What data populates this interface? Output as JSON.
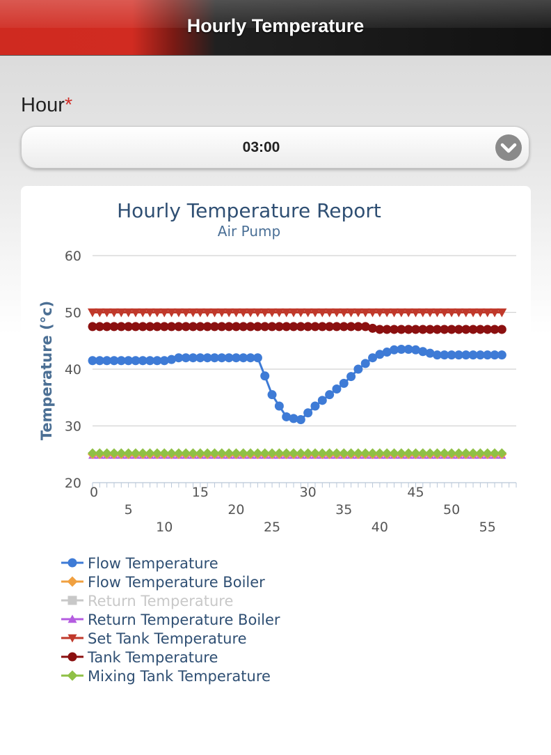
{
  "header": {
    "title": "Hourly Temperature"
  },
  "form": {
    "hour_label": "Hour",
    "required_mark": "*",
    "hour_value": "03:00"
  },
  "colors": {
    "header_red": "#cf2a20",
    "flow": "#3e7bd6",
    "flow_boiler": "#f0a040",
    "return": "#c8c8c8",
    "return_boiler": "#b45ce0",
    "set_tank": "#c0392b",
    "tank": "#8b1010",
    "mixing": "#8fc045"
  },
  "chart_data": {
    "type": "line",
    "title": "Hourly Temperature Report",
    "subtitle": "Air Pump",
    "ylabel": "Temperature (°c)",
    "xlabel": "",
    "ylim": [
      20,
      60
    ],
    "yticks": [
      20,
      30,
      40,
      50,
      60
    ],
    "xlim": [
      0,
      59
    ],
    "xtick_labels": [
      0,
      5,
      10,
      15,
      20,
      25,
      30,
      35,
      40,
      45,
      50,
      55
    ],
    "grid": true,
    "legend_position": "bottom",
    "series": [
      {
        "name": "Flow Temperature",
        "marker": "circle",
        "values": [
          41.5,
          41.5,
          41.5,
          41.5,
          41.5,
          41.5,
          41.5,
          41.5,
          41.5,
          41.5,
          41.5,
          41.7,
          42.0,
          42.0,
          42.0,
          42.0,
          42.0,
          42.0,
          42.0,
          42.0,
          42.0,
          42.0,
          42.0,
          42.0,
          38.8,
          35.5,
          33.5,
          31.6,
          31.3,
          31.1,
          32.3,
          33.5,
          34.5,
          35.5,
          36.5,
          37.5,
          38.7,
          40.0,
          41.0,
          42.0,
          42.6,
          43.0,
          43.4,
          43.5,
          43.5,
          43.4,
          43.1,
          42.8,
          42.5,
          42.5,
          42.5,
          42.5,
          42.5,
          42.5,
          42.5,
          42.5,
          42.5,
          42.5
        ]
      },
      {
        "name": "Flow Temperature Boiler",
        "marker": "diamond",
        "values": [
          25.0,
          25.0,
          25.0,
          25.0,
          25.0,
          25.0,
          25.0,
          25.0,
          25.0,
          25.0,
          25.0,
          25.0,
          25.0,
          25.0,
          25.0,
          25.0,
          25.0,
          25.0,
          25.0,
          25.0,
          25.0,
          25.0,
          25.0,
          25.0,
          25.0,
          25.0,
          25.0,
          25.0,
          25.0,
          25.0,
          25.0,
          25.0,
          25.0,
          25.0,
          25.0,
          25.0,
          25.0,
          25.0,
          25.0,
          25.0,
          25.0,
          25.0,
          25.0,
          25.0,
          25.0,
          25.0,
          25.0,
          25.0,
          25.0,
          25.0,
          25.0,
          25.0,
          25.0,
          25.0,
          25.0,
          25.0,
          25.0,
          25.0
        ]
      },
      {
        "name": "Return Temperature",
        "marker": "square",
        "hidden": true,
        "values": []
      },
      {
        "name": "Return Temperature Boiler",
        "marker": "triangle",
        "values": [
          24.8,
          24.8,
          24.8,
          24.8,
          24.8,
          24.8,
          24.8,
          24.8,
          24.8,
          24.8,
          24.8,
          24.8,
          24.8,
          24.8,
          24.8,
          24.8,
          24.8,
          24.8,
          24.8,
          24.8,
          24.8,
          24.8,
          24.8,
          24.8,
          24.8,
          24.8,
          24.8,
          24.8,
          24.8,
          24.8,
          24.8,
          24.8,
          24.8,
          24.8,
          24.8,
          24.8,
          24.8,
          24.8,
          24.8,
          24.8,
          24.8,
          24.8,
          24.8,
          24.8,
          24.8,
          24.8,
          24.8,
          24.8,
          24.8,
          24.8,
          24.8,
          24.8,
          24.8,
          24.8,
          24.8,
          24.8,
          24.8,
          24.8
        ]
      },
      {
        "name": "Set Tank Temperature",
        "marker": "triangle-down",
        "values": [
          50.0,
          50.0,
          50.0,
          50.0,
          50.0,
          50.0,
          50.0,
          50.0,
          50.0,
          50.0,
          50.0,
          50.0,
          50.0,
          50.0,
          50.0,
          50.0,
          50.0,
          50.0,
          50.0,
          50.0,
          50.0,
          50.0,
          50.0,
          50.0,
          50.0,
          50.0,
          50.0,
          50.0,
          50.0,
          50.0,
          50.0,
          50.0,
          50.0,
          50.0,
          50.0,
          50.0,
          50.0,
          50.0,
          50.0,
          50.0,
          50.0,
          50.0,
          50.0,
          50.0,
          50.0,
          50.0,
          50.0,
          50.0,
          50.0,
          50.0,
          50.0,
          50.0,
          50.0,
          50.0,
          50.0,
          50.0,
          50.0,
          50.0
        ]
      },
      {
        "name": "Tank Temperature",
        "marker": "circle",
        "values": [
          47.5,
          47.5,
          47.5,
          47.5,
          47.5,
          47.5,
          47.5,
          47.5,
          47.5,
          47.5,
          47.5,
          47.5,
          47.5,
          47.5,
          47.5,
          47.5,
          47.5,
          47.5,
          47.5,
          47.5,
          47.5,
          47.5,
          47.5,
          47.5,
          47.5,
          47.5,
          47.5,
          47.5,
          47.5,
          47.5,
          47.5,
          47.5,
          47.5,
          47.5,
          47.5,
          47.5,
          47.5,
          47.5,
          47.5,
          47.2,
          47.0,
          47.0,
          47.0,
          47.0,
          47.0,
          47.0,
          47.0,
          47.0,
          47.0,
          47.0,
          47.0,
          47.0,
          47.0,
          47.0,
          47.0,
          47.0,
          47.0,
          47.0
        ]
      },
      {
        "name": "Mixing Tank Temperature",
        "marker": "diamond",
        "values": [
          25.2,
          25.2,
          25.2,
          25.2,
          25.2,
          25.2,
          25.2,
          25.2,
          25.2,
          25.2,
          25.2,
          25.2,
          25.2,
          25.2,
          25.2,
          25.2,
          25.2,
          25.2,
          25.2,
          25.2,
          25.2,
          25.2,
          25.2,
          25.2,
          25.2,
          25.2,
          25.2,
          25.2,
          25.2,
          25.2,
          25.2,
          25.2,
          25.2,
          25.2,
          25.2,
          25.2,
          25.2,
          25.2,
          25.2,
          25.2,
          25.2,
          25.2,
          25.2,
          25.2,
          25.2,
          25.2,
          25.2,
          25.2,
          25.2,
          25.2,
          25.2,
          25.2,
          25.2,
          25.2,
          25.2,
          25.2,
          25.2,
          25.2
        ]
      }
    ]
  }
}
